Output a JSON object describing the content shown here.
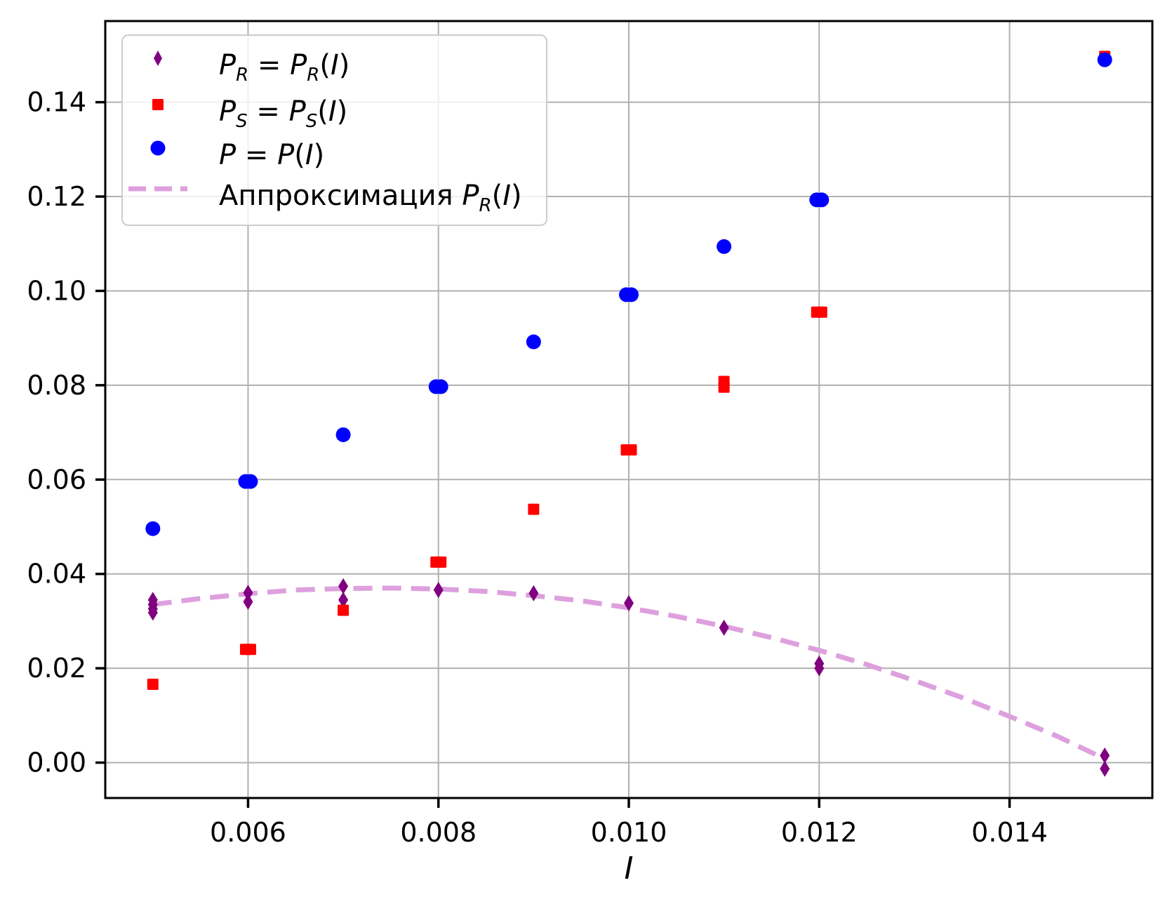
{
  "figure": {
    "background": "#ffffff"
  },
  "axes": {
    "xlabel": "I",
    "xlim": [
      0.0045,
      0.0155
    ],
    "ylim": [
      -0.0075,
      0.1572
    ],
    "x_tick_values": [
      0.006,
      0.008,
      0.01,
      0.012,
      0.014
    ],
    "x_tick_labels": [
      "0.006",
      "0.008",
      "0.010",
      "0.012",
      "0.014"
    ],
    "y_tick_values": [
      0.0,
      0.02,
      0.04,
      0.06,
      0.08,
      0.1,
      0.12,
      0.14
    ],
    "y_tick_labels": [
      "0.00",
      "0.02",
      "0.04",
      "0.06",
      "0.08",
      "0.10",
      "0.12",
      "0.14"
    ],
    "grid": true,
    "grid_color": "#b0b0b0",
    "spine_color": "#000000"
  },
  "legend": {
    "position": "upper-left",
    "entries": [
      {
        "id": "PR",
        "marker": "thin-diamond",
        "color": "#800080",
        "label": "P_R = P_R(I)"
      },
      {
        "id": "PS",
        "marker": "square",
        "color": "#ff0000",
        "label": "P_S = P_S(I)"
      },
      {
        "id": "P",
        "marker": "circle",
        "color": "#0000ff",
        "label": "P = P(I)"
      },
      {
        "id": "fit",
        "marker": "dashed-line",
        "color": "#dda0dd",
        "label": "Аппроксимация P_R(I)"
      }
    ]
  },
  "chart_data": {
    "type": "scatter",
    "title": "",
    "xlabel": "I",
    "ylabel": "",
    "series": [
      {
        "id": "PR",
        "name": "P_R = P_R(I)",
        "marker": "thin-diamond",
        "color": "#800080",
        "points": [
          [
            0.005,
            0.0345
          ],
          [
            0.005,
            0.0335
          ],
          [
            0.005,
            0.0326
          ],
          [
            0.005,
            0.0318
          ],
          [
            0.006,
            0.036
          ],
          [
            0.006,
            0.0341
          ],
          [
            0.007,
            0.0374
          ],
          [
            0.007,
            0.0345
          ],
          [
            0.008,
            0.0366
          ],
          [
            0.009,
            0.0359
          ],
          [
            0.01,
            0.0338
          ],
          [
            0.011,
            0.0286
          ],
          [
            0.012,
            0.021
          ],
          [
            0.012,
            0.02
          ],
          [
            0.015,
            0.0015
          ],
          [
            0.015,
            -0.0013
          ]
        ]
      },
      {
        "id": "PS",
        "name": "P_S = P_S(I)",
        "marker": "square",
        "color": "#ff0000",
        "points": [
          [
            0.005,
            0.0166
          ],
          [
            0.006,
            0.024
          ],
          [
            0.006,
            0.024
          ],
          [
            0.007,
            0.0323
          ],
          [
            0.008,
            0.0425
          ],
          [
            0.008,
            0.0425
          ],
          [
            0.009,
            0.0537
          ],
          [
            0.01,
            0.0663
          ],
          [
            0.01,
            0.0663
          ],
          [
            0.011,
            0.0808
          ],
          [
            0.011,
            0.0796
          ],
          [
            0.012,
            0.0955
          ],
          [
            0.012,
            0.0955
          ],
          [
            0.015,
            0.1497
          ]
        ]
      },
      {
        "id": "P",
        "name": "P = P(I)",
        "marker": "circle",
        "color": "#0000ff",
        "points": [
          [
            0.005,
            0.0496
          ],
          [
            0.006,
            0.0596
          ],
          [
            0.006,
            0.0596
          ],
          [
            0.007,
            0.0695
          ],
          [
            0.008,
            0.0797
          ],
          [
            0.008,
            0.0797
          ],
          [
            0.009,
            0.0892
          ],
          [
            0.01,
            0.0992
          ],
          [
            0.01,
            0.0992
          ],
          [
            0.011,
            0.1094
          ],
          [
            0.012,
            0.1193
          ],
          [
            0.012,
            0.1193
          ],
          [
            0.015,
            0.149
          ]
        ]
      }
    ],
    "curve": {
      "id": "fit",
      "name": "Аппроксимация P_R(I)",
      "color": "#dda0dd",
      "style": "dashed",
      "points": [
        [
          0.005,
          0.0335
        ],
        [
          0.0055,
          0.0348
        ],
        [
          0.006,
          0.0358
        ],
        [
          0.0065,
          0.0366
        ],
        [
          0.007,
          0.0369
        ],
        [
          0.0075,
          0.037
        ],
        [
          0.008,
          0.0368
        ],
        [
          0.0085,
          0.0363
        ],
        [
          0.009,
          0.0354
        ],
        [
          0.0095,
          0.0343
        ],
        [
          0.01,
          0.0328
        ],
        [
          0.0105,
          0.031
        ],
        [
          0.011,
          0.0289
        ],
        [
          0.0115,
          0.0265
        ],
        [
          0.012,
          0.0238
        ],
        [
          0.0125,
          0.0208
        ],
        [
          0.013,
          0.0174
        ],
        [
          0.0135,
          0.0138
        ],
        [
          0.014,
          0.0098
        ],
        [
          0.0145,
          0.0056
        ],
        [
          0.015,
          0.0008
        ]
      ]
    }
  }
}
